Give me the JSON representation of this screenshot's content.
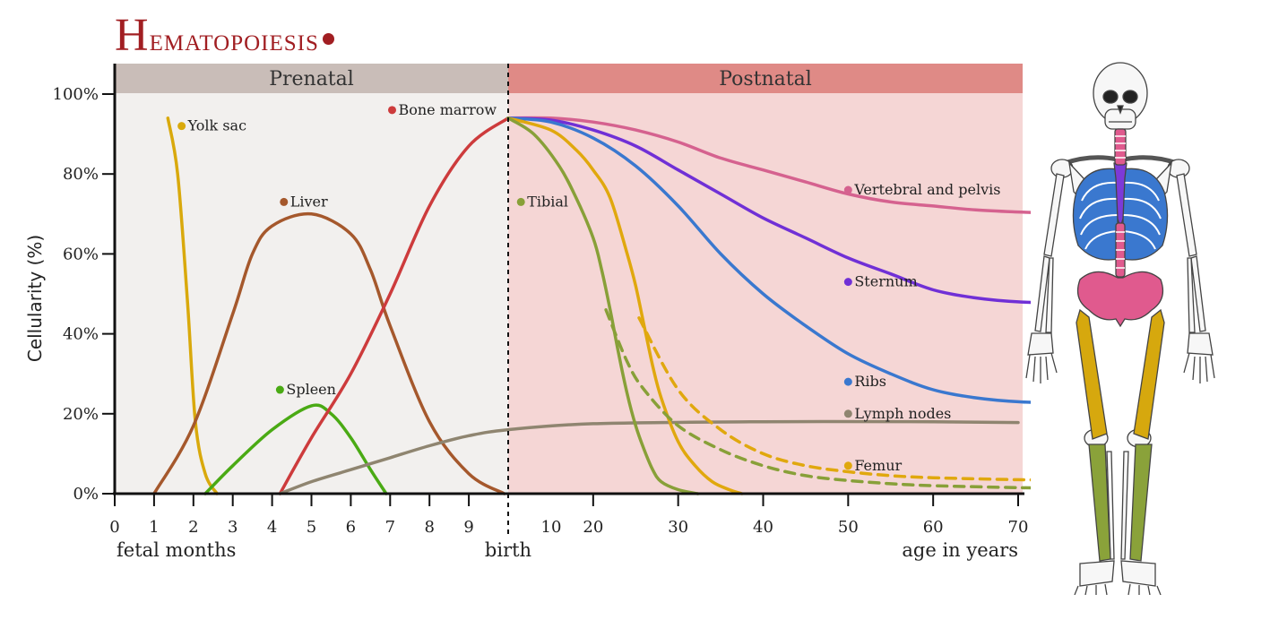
{
  "title": {
    "first_letter": "H",
    "rest": "ematopoiesis"
  },
  "chart_data": {
    "type": "line",
    "ylabel": "Cellularity (%)",
    "y_ticks": [
      "0%",
      "20%",
      "40%",
      "60%",
      "80%",
      "100%"
    ],
    "ylim": [
      0,
      100
    ],
    "x_ticks_prenatal": [
      "0",
      "1",
      "2",
      "3",
      "4",
      "5",
      "6",
      "7",
      "8",
      "9"
    ],
    "x_ticks_postnatal": [
      "10",
      "20",
      "30",
      "40",
      "50",
      "60",
      "70"
    ],
    "x_captions": {
      "left": "fetal months",
      "middle": "birth",
      "right": "age in years"
    },
    "periods": [
      {
        "label": "Prenatal",
        "color": "#c9bdb8"
      },
      {
        "label": "Postnatal",
        "color": "#df8a86"
      }
    ],
    "region_colors": {
      "prenatal": "#f2f0ee",
      "postnatal": "#f5d6d5"
    },
    "birth_marker_x": 10,
    "series": [
      {
        "name": "Yolk sac",
        "color": "#d9a90c",
        "segment": "prenatal",
        "style": "solid",
        "x": [
          1.35,
          1.6,
          1.85,
          2.05,
          2.3,
          2.6
        ],
        "y": [
          94,
          80,
          48,
          18,
          5,
          0
        ],
        "label_x": 1.7,
        "label_y": 92
      },
      {
        "name": "Liver",
        "color": "#a5582c",
        "segment": "prenatal",
        "style": "solid",
        "x": [
          1.0,
          2.0,
          3.0,
          3.5,
          4.0,
          5.0,
          6.0,
          6.5,
          7.0,
          8.0,
          9.0,
          9.9
        ],
        "y": [
          0,
          17,
          45,
          60,
          67,
          70,
          65,
          56,
          42,
          18,
          5,
          0
        ],
        "label_x": 4.3,
        "label_y": 73
      },
      {
        "name": "Spleen",
        "color": "#4aaa14",
        "segment": "prenatal",
        "style": "solid",
        "x": [
          2.3,
          3.0,
          4.0,
          5.0,
          5.5,
          6.0,
          6.5,
          6.9
        ],
        "y": [
          0,
          7,
          16,
          22,
          20,
          14,
          6,
          0
        ],
        "label_x": 4.2,
        "label_y": 26
      },
      {
        "name": "Bone marrow",
        "color": "#cd3b3c",
        "segment": "prenatal",
        "style": "solid",
        "x": [
          4.2,
          5.0,
          6.0,
          7.0,
          8.0,
          9.0,
          10.0
        ],
        "y": [
          0,
          14,
          30,
          50,
          72,
          87,
          94
        ],
        "label_x": 7.05,
        "label_y": 96
      },
      {
        "name": "Vertebral and pelvis",
        "color": "#d5628f",
        "segment": "postnatal",
        "style": "solid",
        "x": [
          0,
          5,
          10,
          15,
          20,
          25,
          30,
          35,
          40,
          45,
          50,
          55,
          60,
          65,
          69
        ],
        "y": [
          94,
          94,
          93,
          91,
          88,
          84,
          81,
          78,
          75,
          73,
          72,
          71,
          70.5,
          70.2,
          70.2
        ],
        "label_x": 50,
        "label_y": 76
      },
      {
        "name": "Sternum",
        "color": "#7030d6",
        "segment": "postnatal",
        "style": "solid",
        "x": [
          0,
          5,
          10,
          15,
          20,
          25,
          30,
          35,
          40,
          45,
          50,
          55,
          60,
          65,
          69
        ],
        "y": [
          94,
          93.5,
          91,
          87,
          81,
          75,
          69,
          64,
          59,
          55,
          51,
          49,
          48,
          47.8,
          48
        ],
        "label_x": 50,
        "label_y": 53
      },
      {
        "name": "Ribs",
        "color": "#3a78cf",
        "segment": "postnatal",
        "style": "solid",
        "x": [
          0,
          5,
          10,
          15,
          20,
          25,
          30,
          35,
          40,
          45,
          50,
          55,
          60,
          65,
          69
        ],
        "y": [
          94,
          93,
          89,
          82,
          72,
          60,
          50,
          42,
          35,
          30,
          26,
          24,
          23,
          22.7,
          22.7
        ],
        "label_x": 50,
        "label_y": 28
      },
      {
        "name": "Lymph nodes",
        "color": "#8f8570",
        "segment": "both",
        "style": "solid",
        "x": [
          4.2,
          5,
          6,
          7,
          8,
          9,
          10,
          20,
          40,
          60,
          70
        ],
        "y": [
          0,
          3,
          6,
          9,
          12,
          14.5,
          16,
          17.5,
          18,
          18,
          17.8
        ],
        "label_x": 50,
        "label_y": 20
      },
      {
        "name": "Femur",
        "color": "#e0a80e",
        "segment": "postnatal",
        "style": "solid",
        "x": [
          0,
          5,
          8,
          10,
          12,
          14,
          15,
          16,
          17,
          18,
          20,
          22,
          24,
          26,
          27.5
        ],
        "y": [
          94,
          91,
          86,
          81,
          74,
          60,
          52,
          42,
          32,
          24,
          13,
          7,
          3,
          1,
          0
        ],
        "label_x": 50,
        "label_y": 7
      },
      {
        "name": "",
        "color": "#e0a80e",
        "segment": "postnatal",
        "style": "dashed",
        "x": [
          15.4,
          20,
          25,
          30,
          35,
          40,
          45,
          50,
          60,
          69
        ],
        "y": [
          44,
          26,
          16,
          10,
          7,
          5.5,
          4.5,
          4,
          3.5,
          3.3
        ]
      },
      {
        "name": "Tibial",
        "color": "#88a038",
        "segment": "postnatal",
        "style": "solid",
        "x": [
          0,
          3,
          6,
          8,
          10,
          11,
          12,
          13,
          14,
          15,
          16,
          17,
          18,
          20,
          22.3
        ],
        "y": [
          94,
          90,
          82,
          74,
          64,
          56,
          46,
          35,
          25,
          17,
          11,
          6,
          3,
          1,
          0
        ],
        "label_x": 1.5,
        "label_y": 73
      },
      {
        "name": "",
        "color": "#88a038",
        "segment": "postnatal",
        "style": "dashed",
        "x": [
          11.5,
          14,
          16,
          20,
          25,
          30,
          35,
          40,
          45,
          50,
          60,
          69
        ],
        "y": [
          46,
          33,
          26,
          17,
          11,
          7,
          4.5,
          3.3,
          2.5,
          2,
          1.5,
          1.2
        ]
      }
    ]
  },
  "skeleton": {
    "bone_color": "#f7f7f7",
    "outline_color": "#444444",
    "region_colors": {
      "vertebral_pelvis": "#e05a8e",
      "sternum": "#7d3ad8",
      "ribs": "#3a78cf",
      "femur": "#d6a80e",
      "tibia": "#8aa23a"
    }
  }
}
